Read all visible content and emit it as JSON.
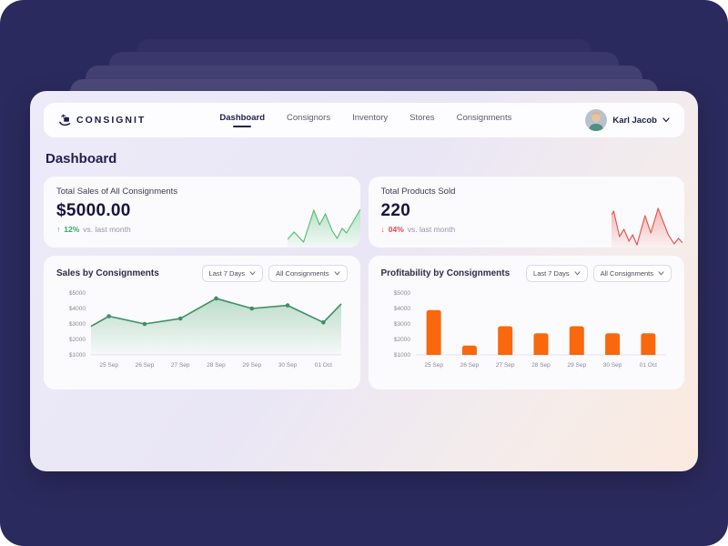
{
  "brand": {
    "name": "CONSIGNIT"
  },
  "nav": {
    "items": [
      {
        "label": "Dashboard",
        "active": true
      },
      {
        "label": "Consignors",
        "active": false
      },
      {
        "label": "Inventory",
        "active": false
      },
      {
        "label": "Stores",
        "active": false
      },
      {
        "label": "Consignments",
        "active": false
      }
    ]
  },
  "user": {
    "name": "Karl Jacob"
  },
  "page": {
    "title": "Dashboard"
  },
  "stats": [
    {
      "title": "Total Sales of All Consignments",
      "value": "$5000.00",
      "delta_arrow": "↑",
      "delta_pct": "12%",
      "delta_note": "vs. last month",
      "direction": "up"
    },
    {
      "title": "Total Products Sold",
      "value": "220",
      "delta_arrow": "↓",
      "delta_pct": "04%",
      "delta_note": "vs. last month",
      "direction": "down"
    }
  ],
  "filters": {
    "period": "Last 7 Days",
    "scope": "All Consignments"
  },
  "colors": {
    "navy": "#23214f",
    "green_line": "#3f8f63",
    "green_delta": "#2fae68",
    "red_delta": "#e14b4b",
    "orange_bar": "#f9680d",
    "axis_text": "#8b8a9c",
    "axis_line": "#e6e4f0"
  },
  "chart_data": [
    {
      "type": "line",
      "title": "Sales by Consignments",
      "categories": [
        "25 Sep",
        "26 Sep",
        "27 Sep",
        "28 Sep",
        "29 Sep",
        "30 Sep",
        "01 Oct"
      ],
      "values": [
        3500,
        3000,
        3350,
        4650,
        4000,
        4200,
        3100
      ],
      "edge_start": 2850,
      "edge_end": 4300,
      "ylim": [
        1000,
        5000
      ],
      "yticks": [
        5000,
        4000,
        3000,
        2000,
        1000
      ],
      "ytick_prefix": "$",
      "grid": false,
      "legend": "none"
    },
    {
      "type": "bar",
      "title": "Profitability by Consignments",
      "categories": [
        "25 Sep",
        "26 Sep",
        "27 Sep",
        "28 Sep",
        "29 Sep",
        "30 Sep",
        "01 Oct"
      ],
      "values": [
        3900,
        1600,
        2850,
        2400,
        2850,
        2400,
        2400
      ],
      "ylim": [
        1000,
        5000
      ],
      "yticks": [
        5000,
        4000,
        3000,
        2000,
        1000
      ],
      "ytick_prefix": "$",
      "grid": false,
      "legend": "none"
    }
  ],
  "sparklines": {
    "up": [
      [
        0,
        41
      ],
      [
        9,
        33
      ],
      [
        15,
        38
      ],
      [
        22,
        44
      ],
      [
        36,
        9
      ],
      [
        44,
        25
      ],
      [
        52,
        13
      ],
      [
        61,
        31
      ],
      [
        68,
        40
      ],
      [
        75,
        29
      ],
      [
        81,
        34
      ],
      [
        100,
        8
      ]
    ],
    "down": [
      [
        0,
        14
      ],
      [
        3,
        10
      ],
      [
        11,
        38
      ],
      [
        17,
        30
      ],
      [
        24,
        43
      ],
      [
        29,
        36
      ],
      [
        35,
        47
      ],
      [
        46,
        15
      ],
      [
        54,
        34
      ],
      [
        64,
        7
      ],
      [
        78,
        36
      ],
      [
        86,
        46
      ],
      [
        92,
        40
      ],
      [
        100,
        47
      ]
    ]
  }
}
